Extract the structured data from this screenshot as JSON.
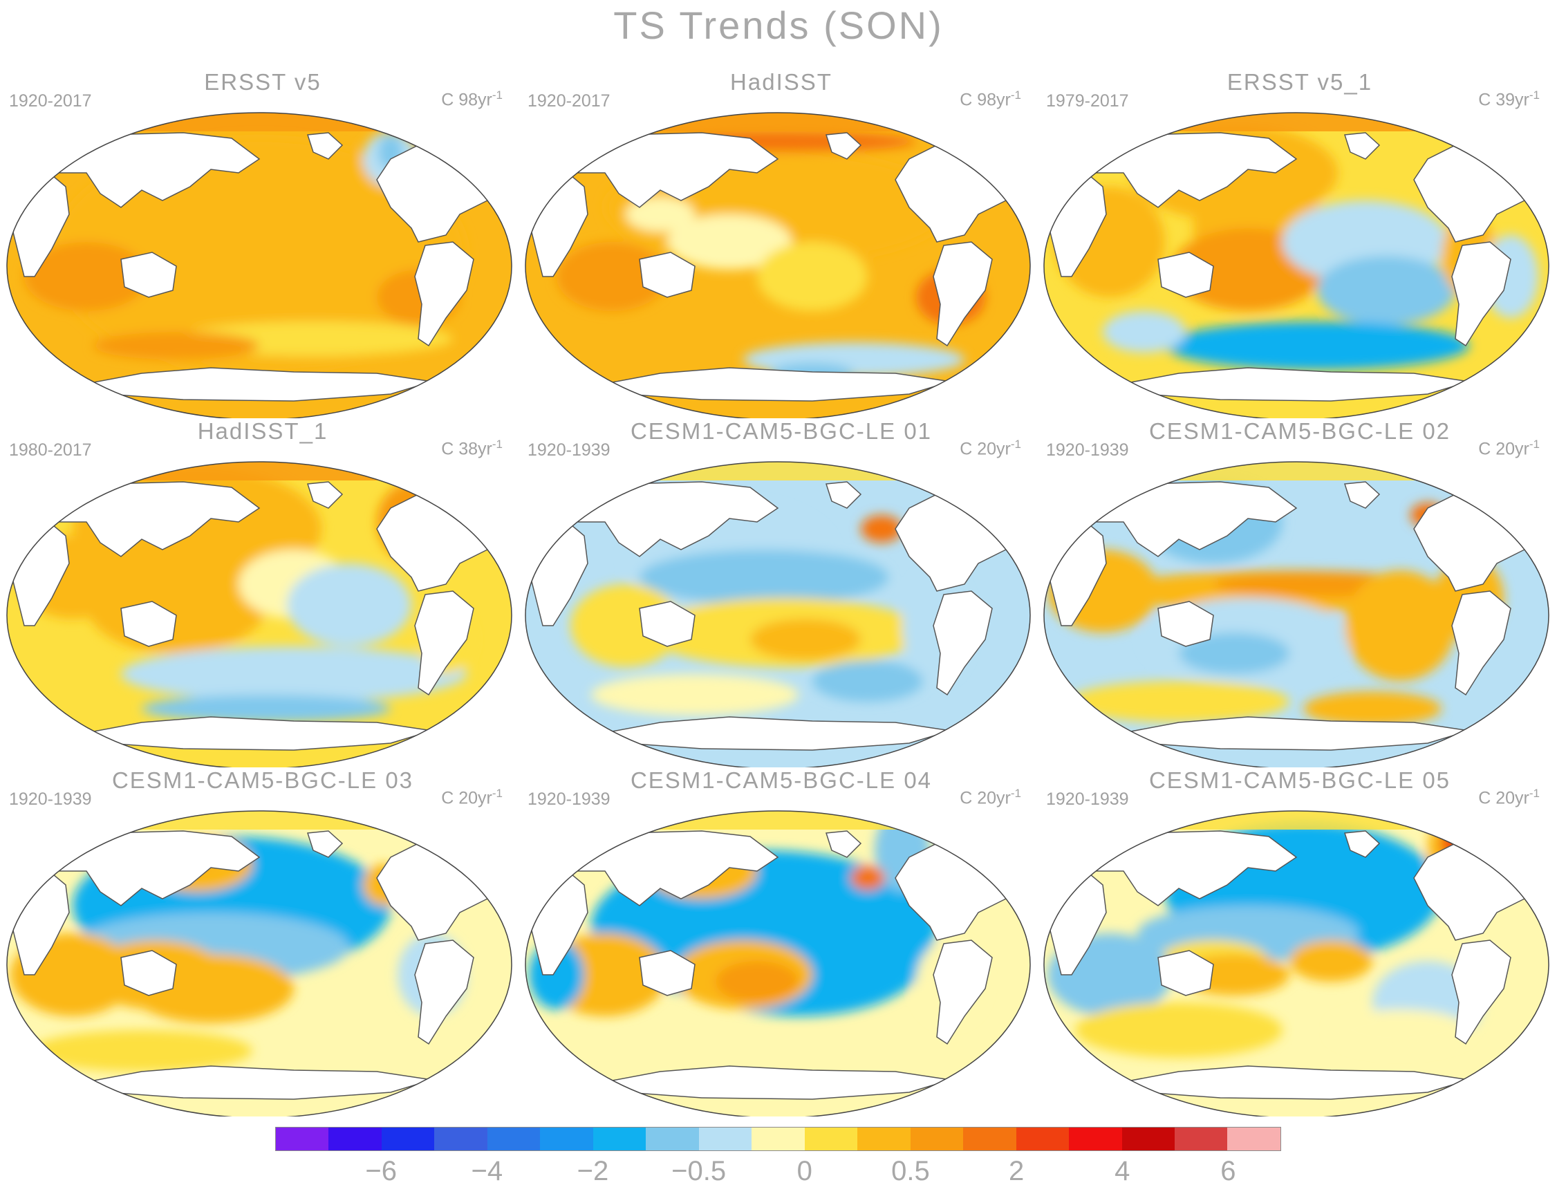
{
  "title": "TS Trends (SON)",
  "panels": [
    {
      "title": "ERSST v5",
      "period": "1920-2017",
      "units": "C 98yr",
      "units_exp": "-1",
      "pattern": "warm_uniform"
    },
    {
      "title": "HadISST",
      "period": "1920-2017",
      "units": "C 98yr",
      "units_exp": "-1",
      "pattern": "warm_patchy"
    },
    {
      "title": "ERSST v5_1",
      "period": "1979-2017",
      "units": "C 39yr",
      "units_exp": "-1",
      "pattern": "la_nina_like"
    },
    {
      "title": "HadISST_1",
      "period": "1980-2017",
      "units": "C 38yr",
      "units_exp": "-1",
      "pattern": "warm_west_cool_east"
    },
    {
      "title": "CESM1-CAM5-BGC-LE 01",
      "period": "1920-1939",
      "units": "C 20yr",
      "units_exp": "-1",
      "pattern": "cool_mixed"
    },
    {
      "title": "CESM1-CAM5-BGC-LE 02",
      "period": "1920-1939",
      "units": "C 20yr",
      "units_exp": "-1",
      "pattern": "el_nino_like"
    },
    {
      "title": "CESM1-CAM5-BGC-LE 03",
      "period": "1920-1939",
      "units": "C 20yr",
      "units_exp": "-1",
      "pattern": "cool_pacific"
    },
    {
      "title": "CESM1-CAM5-BGC-LE 04",
      "period": "1920-1939",
      "units": "C 20yr",
      "units_exp": "-1",
      "pattern": "cool_pacific_strong"
    },
    {
      "title": "CESM1-CAM5-BGC-LE 05",
      "period": "1920-1939",
      "units": "C 20yr",
      "units_exp": "-1",
      "pattern": "cool_north_pacific"
    }
  ],
  "colorbar": {
    "colors": [
      "#8020f0",
      "#3a10f0",
      "#1a30ee",
      "#3a60e0",
      "#2a78e8",
      "#1a95f0",
      "#10b0f0",
      "#80c8ec",
      "#b8e0f4",
      "#fff8b0",
      "#fde040",
      "#fbb818",
      "#f89a10",
      "#f47410",
      "#f04010",
      "#f01010",
      "#c80808",
      "#d84040",
      "#f8b0b0"
    ],
    "labels": [
      "−6",
      "−4",
      "−2",
      "−0.5",
      "0",
      "0.5",
      "2",
      "4",
      "6"
    ]
  },
  "ocean_colors": {
    "land": "#ffffff",
    "coast": "#555555"
  }
}
